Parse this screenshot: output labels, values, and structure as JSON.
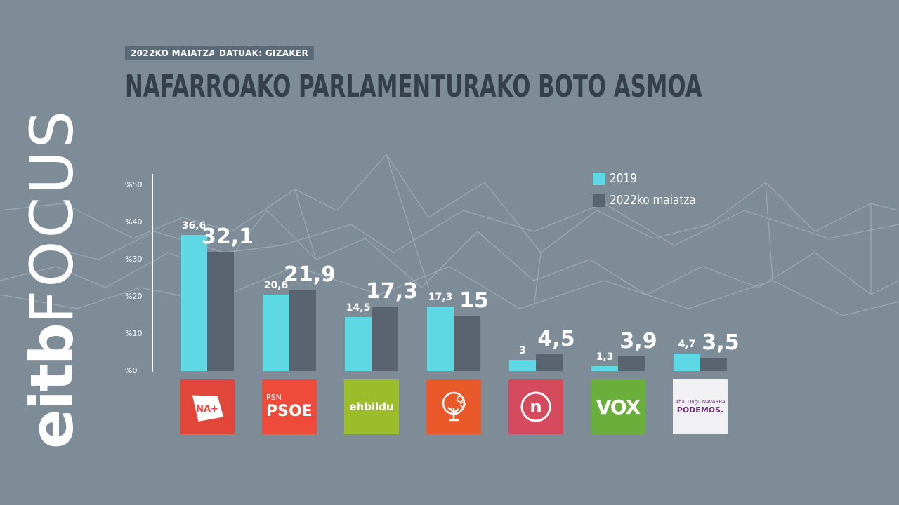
{
  "header": {
    "date_tag": "2022KO MAIATZA",
    "source_tag": "DATUAK: GIZAKER",
    "title": "NAFARROAKO PARLAMENTURAKO BOTO ASMOA"
  },
  "watermark": {
    "part1": "eitb",
    "part2": "FOCUS"
  },
  "colors": {
    "series_2019": "#5fd8e6",
    "series_2022": "#5a6471",
    "background": "#7e8c98",
    "title": "#36404b"
  },
  "chart_data": {
    "type": "bar",
    "title": "NAFARROAKO PARLAMENTURAKO BOTO ASMOA",
    "xlabel": "",
    "ylabel": "",
    "ylim": [
      0,
      50
    ],
    "yticks": [
      "%50",
      "%40",
      "%30",
      "%20",
      "%10",
      "%0"
    ],
    "grid": false,
    "legend_position": "top-right",
    "categories": [
      "NA+",
      "PSN PSOE",
      "EH Bildu",
      "Geroa Bai",
      "n",
      "VOX",
      "Podemos"
    ],
    "series": [
      {
        "name": "2019",
        "values": [
          36.6,
          20.6,
          14.5,
          17.3,
          3,
          1.3,
          4.7
        ],
        "labels": [
          "36,6",
          "20,6",
          "14,5",
          "17,3",
          "3",
          "1,3",
          "4,7"
        ]
      },
      {
        "name": "2022ko maiatza",
        "values": [
          32.1,
          21.9,
          17.3,
          15,
          4.5,
          3.9,
          3.5
        ],
        "labels": [
          "32,1",
          "21,9",
          "17,3",
          "15",
          "4,5",
          "3,9",
          "3,5"
        ]
      }
    ]
  },
  "logos": {
    "naplus": {
      "text": "NA+"
    },
    "psoe": {
      "line1": "PSN",
      "line2": "PSOE"
    },
    "bildu": {
      "text": "ehbildu"
    },
    "geroabai": {
      "icon": "tree-icon"
    },
    "n": {
      "text": "n"
    },
    "vox": {
      "text": "VOX"
    },
    "podemos": {
      "line1": "Ahal Dugu NAVARRA",
      "line2": "PODEMOS."
    }
  }
}
